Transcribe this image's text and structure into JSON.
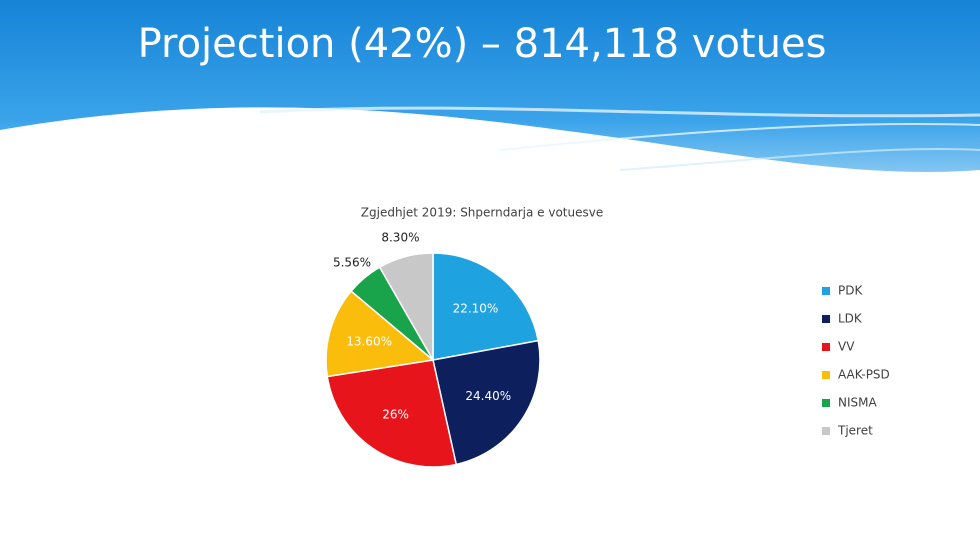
{
  "slide": {
    "title": "Projection (42%) – 814,118 votues"
  },
  "chart_data": {
    "type": "pie",
    "title": "Zgjedhjet 2019: Shperndarja e votuesve",
    "categories": [
      "PDK",
      "LDK",
      "VV",
      "AAK-PSD",
      "NISMA",
      "Tjeret"
    ],
    "values": [
      22.1,
      24.4,
      26,
      13.6,
      5.56,
      8.3
    ],
    "value_labels": [
      "22.10%",
      "24.40%",
      "26%",
      "13.60%",
      "5.56%",
      "8.30%"
    ],
    "colors": [
      "#1fa2e0",
      "#0d1f5c",
      "#e8141b",
      "#fbbd0b",
      "#19a34a",
      "#c8c8c8"
    ],
    "legend": "right"
  }
}
